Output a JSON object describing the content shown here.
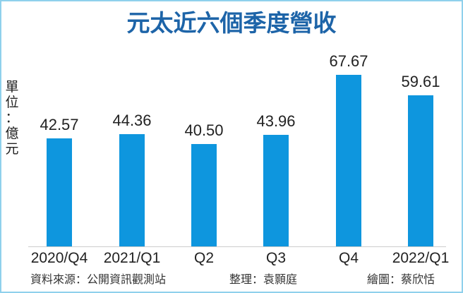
{
  "chart_data": {
    "type": "bar",
    "title": "元太近六個季度營收",
    "ylabel": "單位：億元",
    "xlabel": "",
    "categories": [
      "2020/Q4",
      "2021/Q1",
      "Q2",
      "Q3",
      "Q4",
      "2022/Q1"
    ],
    "values": [
      42.57,
      44.36,
      40.5,
      43.96,
      67.67,
      59.61
    ],
    "value_labels": [
      "42.57",
      "44.36",
      "40.50",
      "43.96",
      "67.67",
      "59.61"
    ],
    "bar_color": "#0e96de",
    "grid": false,
    "legend": null
  },
  "header": {
    "title": "元太近六個季度營收"
  },
  "unit_label": [
    "單",
    "位",
    "：",
    "億",
    "元"
  ],
  "footer": {
    "source": "資料來源：公開資訊觀測站",
    "editor": "整理：袁顥庭",
    "artist": "繪圖：蔡欣恬"
  },
  "colors": {
    "title": "#1d64a8",
    "bar": "#0e96de",
    "border": "#8fd0ec"
  }
}
